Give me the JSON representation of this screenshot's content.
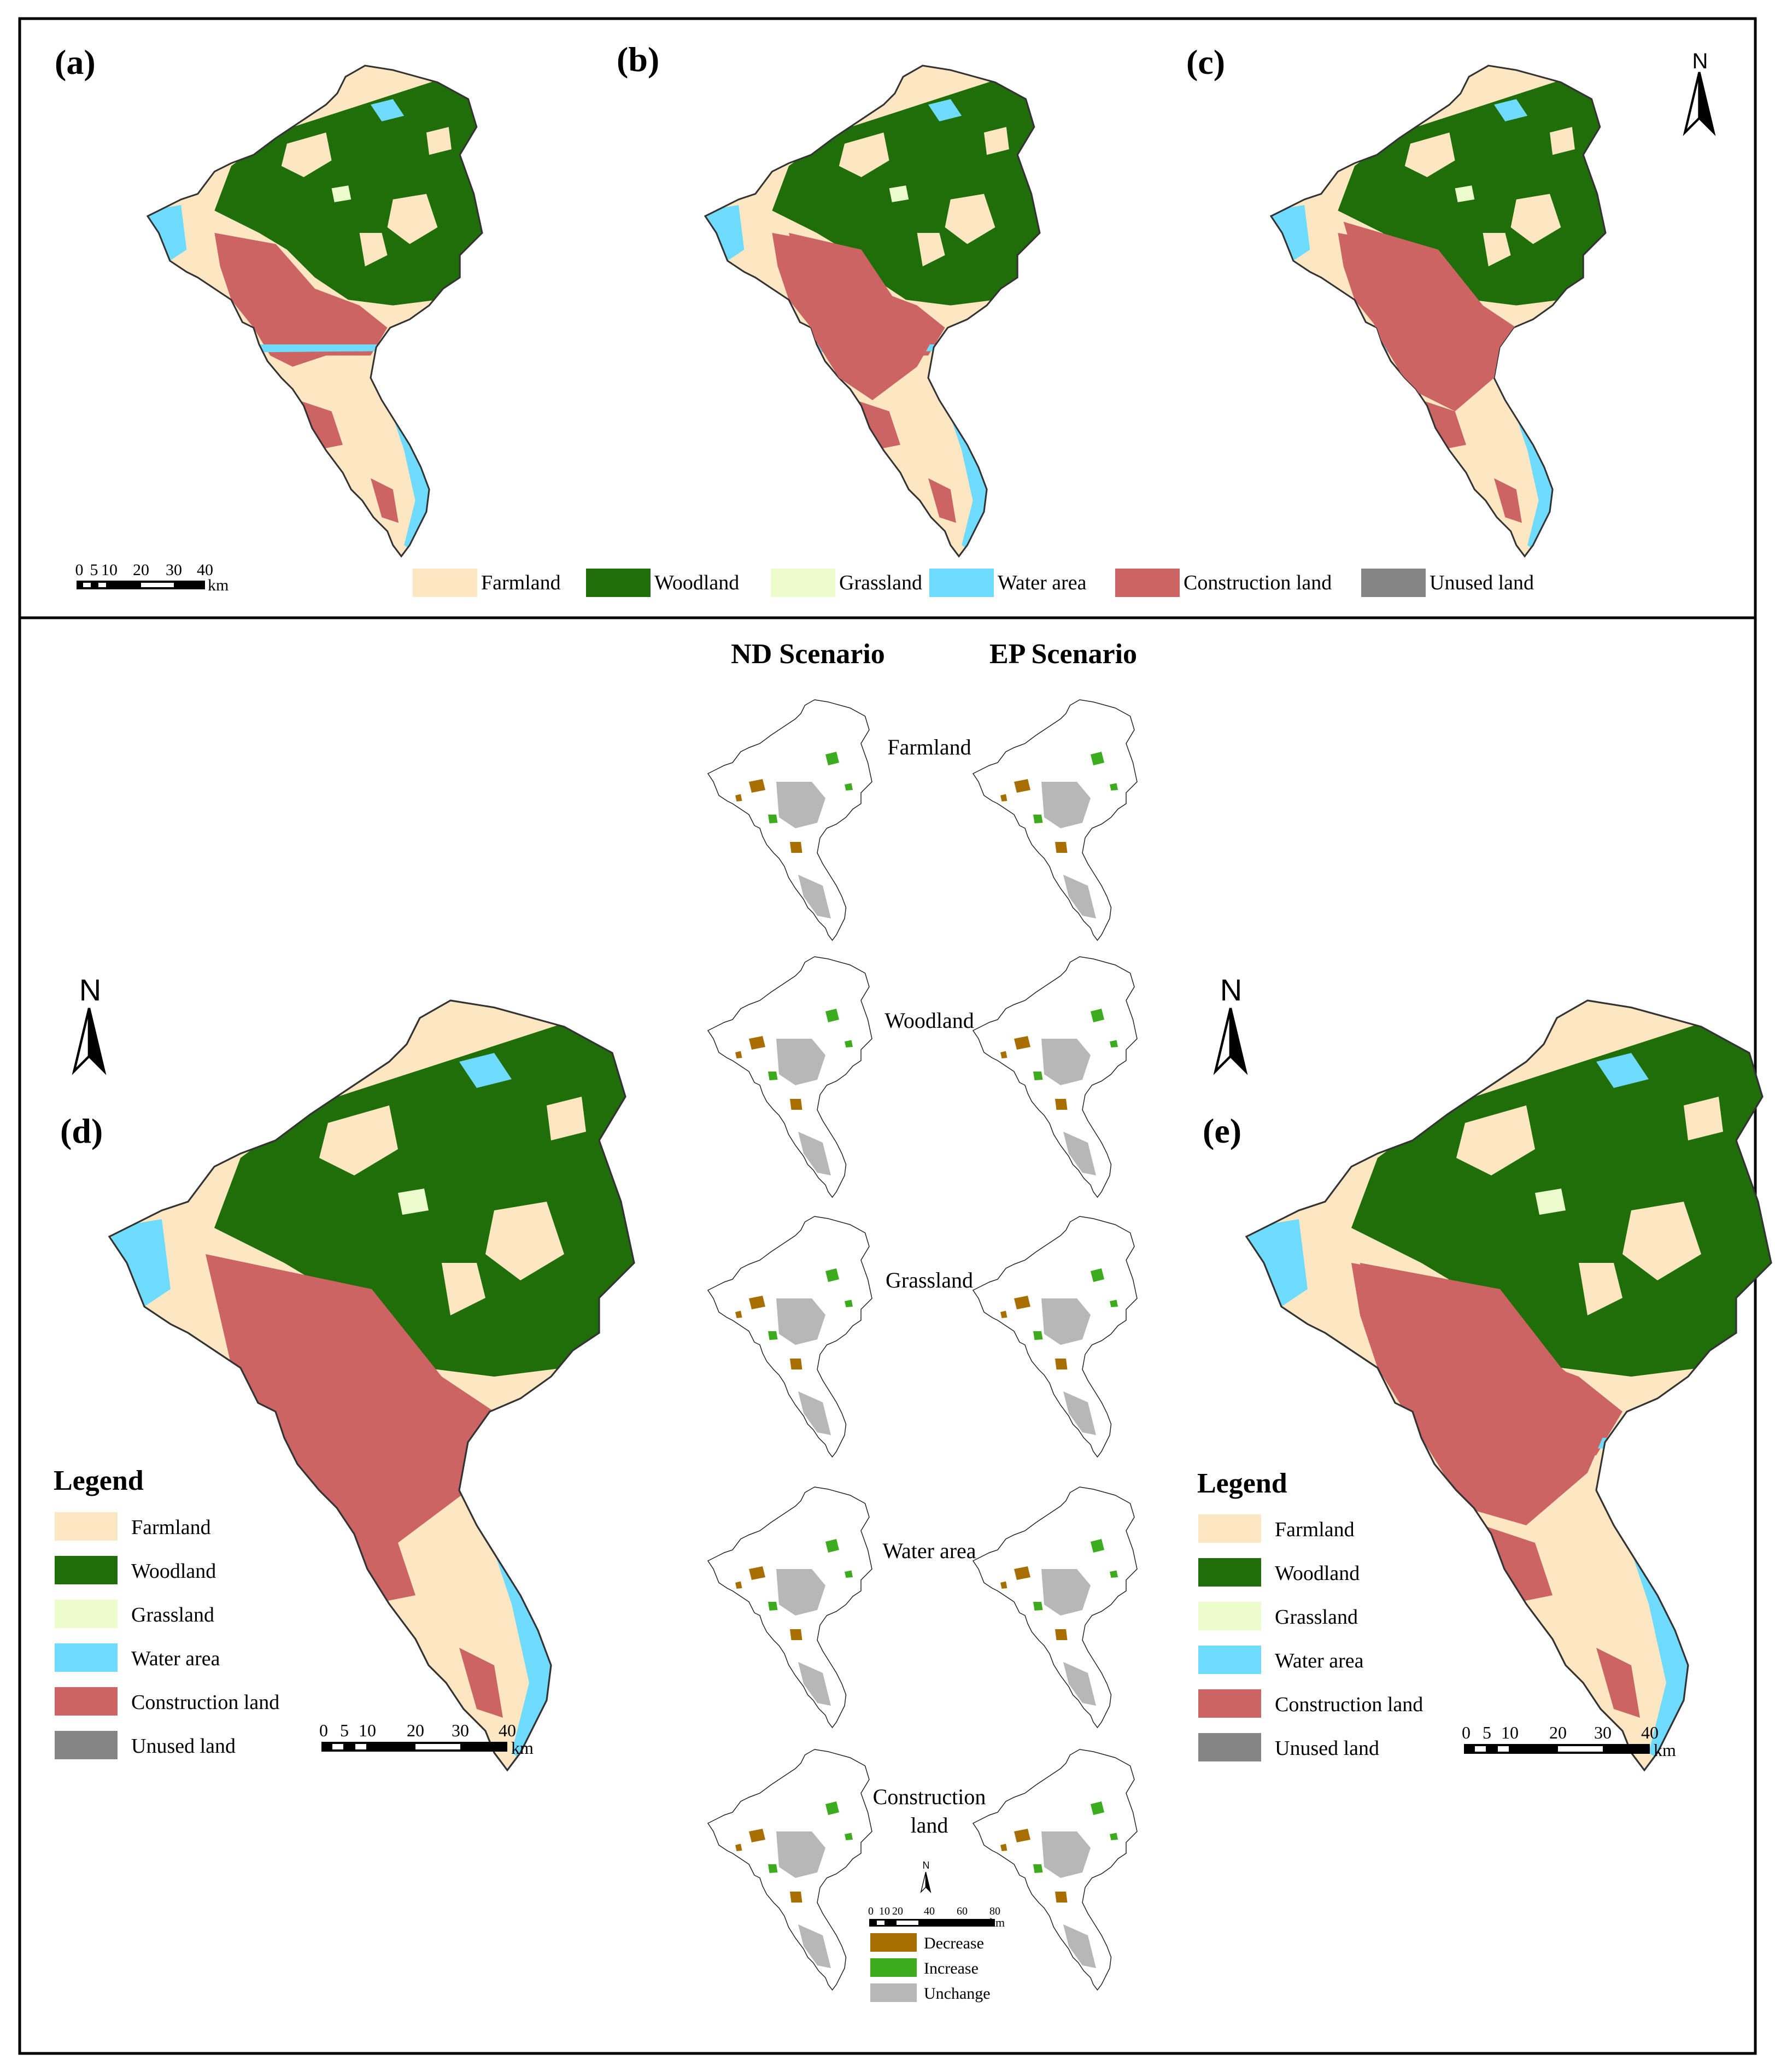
{
  "colors": {
    "farmland": "#fde7c2",
    "woodland": "#1f6e0a",
    "grassland": "#ecfccc",
    "water": "#6fdcff",
    "construction": "#cc6464",
    "unused": "#858585",
    "decrease": "#a86e00",
    "increase": "#3cac1e",
    "unchange": "#b7b7b7"
  },
  "top_panel": {
    "maps": [
      {
        "label": "(a)"
      },
      {
        "label": "(b)"
      },
      {
        "label": "(c)"
      }
    ],
    "north": "N",
    "scalebar": {
      "ticks": [
        "0",
        "5",
        "10",
        "20",
        "30",
        "40"
      ],
      "unit": "km"
    },
    "legend": [
      {
        "label": "Farmland",
        "key": "farmland"
      },
      {
        "label": "Woodland",
        "key": "woodland"
      },
      {
        "label": "Grassland",
        "key": "grassland"
      },
      {
        "label": "Water area",
        "key": "water"
      },
      {
        "label": "Construction land",
        "key": "construction"
      },
      {
        "label": "Unused land",
        "key": "unused"
      }
    ]
  },
  "bottom_panel": {
    "scenario_titles": [
      "ND Scenario",
      "EP Scenario"
    ],
    "change_maps": [
      {
        "label": "Farmland"
      },
      {
        "label": "Woodland"
      },
      {
        "label": "Grassland"
      },
      {
        "label": "Water area"
      },
      {
        "label": "Construction\nland"
      }
    ],
    "change_legend": [
      {
        "label": "Decrease",
        "key": "decrease"
      },
      {
        "label": "Increase",
        "key": "increase"
      },
      {
        "label": "Unchange",
        "key": "unchange"
      }
    ],
    "small_north": "N",
    "small_scalebar": {
      "ticks": [
        "0",
        "10",
        "20",
        "40",
        "60",
        "80"
      ],
      "unit": "km"
    },
    "map_d": {
      "label": "(d)",
      "north": "N",
      "legend_title": "Legend",
      "scalebar": {
        "ticks": [
          "0",
          "5",
          "10",
          "20",
          "30",
          "40"
        ],
        "unit": "km"
      }
    },
    "map_e": {
      "label": "(e)",
      "north": "N",
      "legend_title": "Legend",
      "scalebar": {
        "ticks": [
          "0",
          "5",
          "10",
          "20",
          "30",
          "40"
        ],
        "unit": "km"
      }
    },
    "legend": [
      {
        "label": "Farmland",
        "key": "farmland"
      },
      {
        "label": "Woodland",
        "key": "woodland"
      },
      {
        "label": "Grassland",
        "key": "grassland"
      },
      {
        "label": "Water area",
        "key": "water"
      },
      {
        "label": "Construction land",
        "key": "construction"
      },
      {
        "label": "Unused land",
        "key": "unused"
      }
    ]
  }
}
